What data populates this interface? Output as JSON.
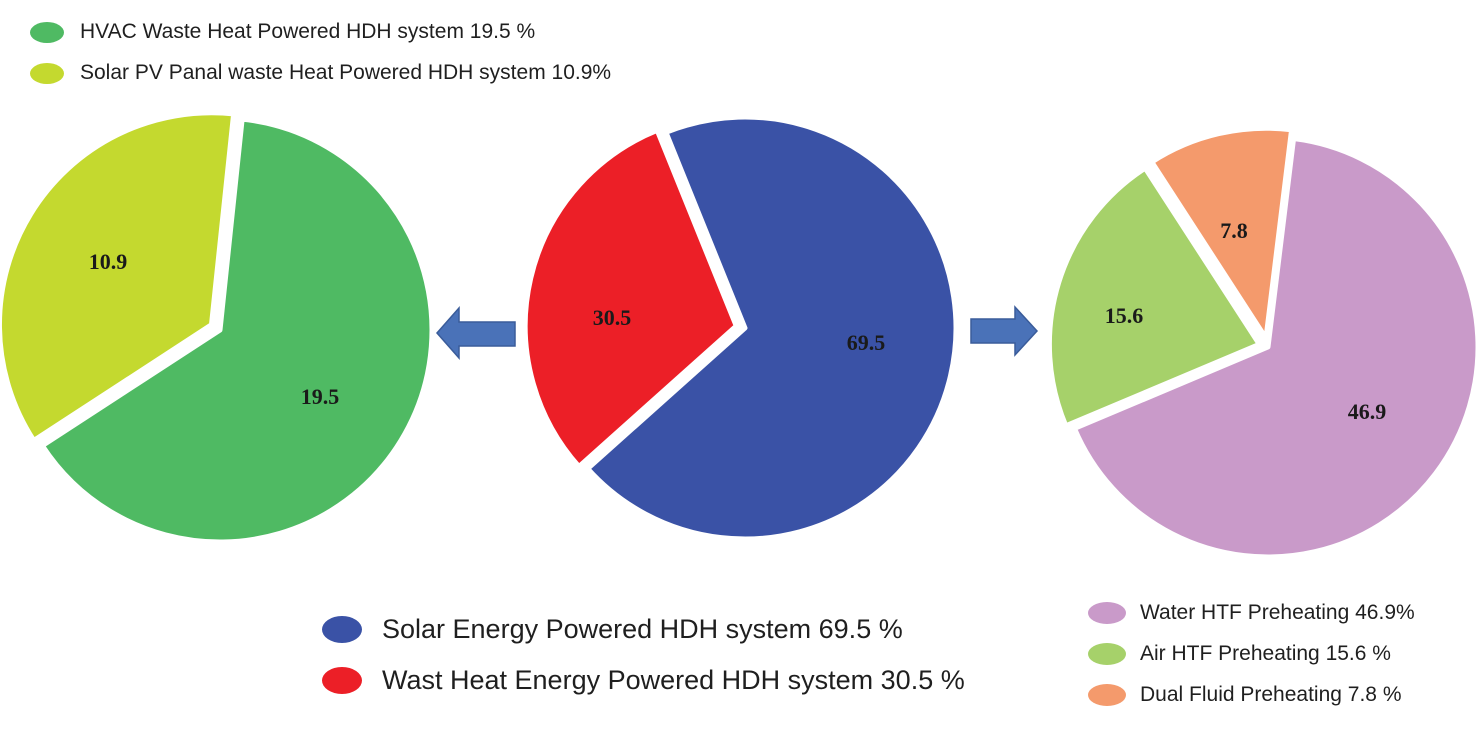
{
  "chart_data": [
    {
      "type": "pie",
      "title": "",
      "slices": [
        {
          "label": "HVAC Waste Heat Powered HDH system 19.5 %",
          "value": 19.5,
          "display": "19.5",
          "color": "#4fba63"
        },
        {
          "label": "Solar PV Panal waste Heat Powered HDH system 10.9%",
          "value": 10.9,
          "display": "10.9",
          "color": "#c4d92f"
        }
      ],
      "legend": "top-left"
    },
    {
      "type": "pie",
      "title": "",
      "slices": [
        {
          "label": "Solar Energy Powered HDH system 69.5 %",
          "value": 69.5,
          "display": "69.5",
          "color": "#3a52a6"
        },
        {
          "label": "Wast Heat Energy Powered HDH system 30.5 %",
          "value": 30.5,
          "display": "30.5",
          "color": "#ec1f27"
        }
      ],
      "legend": "bottom-center"
    },
    {
      "type": "pie",
      "title": "",
      "slices": [
        {
          "label": "Water HTF Preheating 46.9%",
          "value": 46.9,
          "display": "46.9",
          "color": "#c99ac9"
        },
        {
          "label": "Air HTF Preheating 15.6 %",
          "value": 15.6,
          "display": "15.6",
          "color": "#a6d16a"
        },
        {
          "label": "Dual Fluid Preheating 7.8 %",
          "value": 7.8,
          "display": "7.8",
          "color": "#f49a6c"
        }
      ],
      "legend": "bottom-right"
    }
  ],
  "arrow_color": "#4a72b8"
}
